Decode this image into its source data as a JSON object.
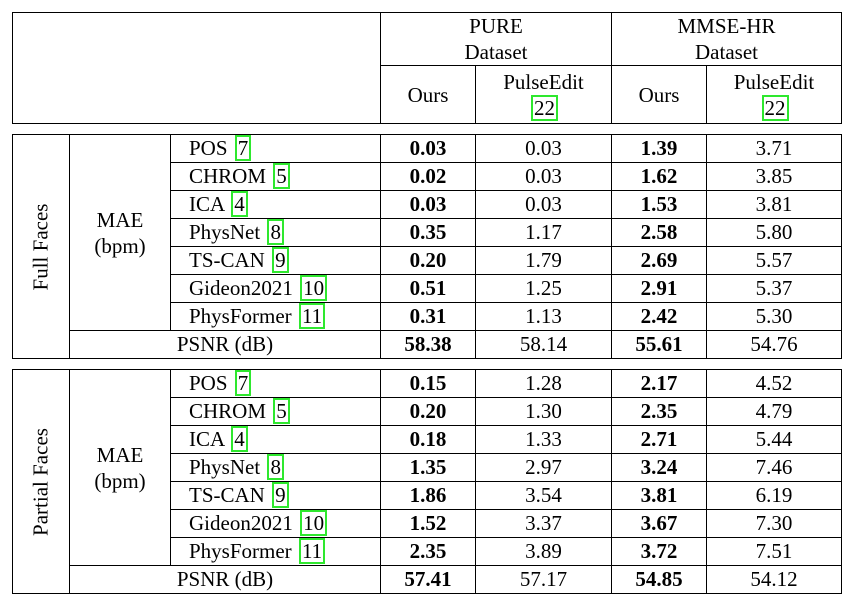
{
  "header": {
    "datasets": [
      {
        "line1": "PURE",
        "line2": "Dataset"
      },
      {
        "line1": "MMSE-HR",
        "line2": "Dataset"
      }
    ],
    "cols": [
      {
        "label": "Ours"
      },
      {
        "label": "PulseEdit",
        "cite": "22"
      },
      {
        "label": "Ours"
      },
      {
        "label": "PulseEdit",
        "cite": "22"
      }
    ]
  },
  "sections": [
    {
      "group": "Full Faces",
      "metric_line1": "MAE",
      "metric_line2": "(bpm)",
      "rows": [
        {
          "method": "POS",
          "cite": "7",
          "vals": [
            "0.03",
            "0.03",
            "1.39",
            "3.71"
          ]
        },
        {
          "method": "CHROM",
          "cite": "5",
          "vals": [
            "0.02",
            "0.03",
            "1.62",
            "3.85"
          ]
        },
        {
          "method": "ICA",
          "cite": "4",
          "vals": [
            "0.03",
            "0.03",
            "1.53",
            "3.81"
          ]
        },
        {
          "method": "PhysNet",
          "cite": "8",
          "vals": [
            "0.35",
            "1.17",
            "2.58",
            "5.80"
          ]
        },
        {
          "method": "TS-CAN",
          "cite": "9",
          "vals": [
            "0.20",
            "1.79",
            "2.69",
            "5.57"
          ]
        },
        {
          "method": "Gideon2021",
          "cite": "10",
          "vals": [
            "0.51",
            "1.25",
            "2.91",
            "5.37"
          ]
        },
        {
          "method": "PhysFormer",
          "cite": "11",
          "vals": [
            "0.31",
            "1.13",
            "2.42",
            "5.30"
          ]
        }
      ],
      "psnr": {
        "label": "PSNR (dB)",
        "vals": [
          "58.38",
          "58.14",
          "55.61",
          "54.76"
        ]
      }
    },
    {
      "group": "Partial Faces",
      "metric_line1": "MAE",
      "metric_line2": "(bpm)",
      "rows": [
        {
          "method": "POS",
          "cite": "7",
          "vals": [
            "0.15",
            "1.28",
            "2.17",
            "4.52"
          ]
        },
        {
          "method": "CHROM",
          "cite": "5",
          "vals": [
            "0.20",
            "1.30",
            "2.35",
            "4.79"
          ]
        },
        {
          "method": "ICA",
          "cite": "4",
          "vals": [
            "0.18",
            "1.33",
            "2.71",
            "5.44"
          ]
        },
        {
          "method": "PhysNet",
          "cite": "8",
          "vals": [
            "1.35",
            "2.97",
            "3.24",
            "7.46"
          ]
        },
        {
          "method": "TS-CAN",
          "cite": "9",
          "vals": [
            "1.86",
            "3.54",
            "3.81",
            "6.19"
          ]
        },
        {
          "method": "Gideon2021",
          "cite": "10",
          "vals": [
            "1.52",
            "3.37",
            "3.67",
            "7.30"
          ]
        },
        {
          "method": "PhysFormer",
          "cite": "11",
          "vals": [
            "2.35",
            "3.89",
            "3.72",
            "7.51"
          ]
        }
      ],
      "psnr": {
        "label": "PSNR (dB)",
        "vals": [
          "57.41",
          "57.17",
          "54.85",
          "54.12"
        ]
      }
    }
  ]
}
